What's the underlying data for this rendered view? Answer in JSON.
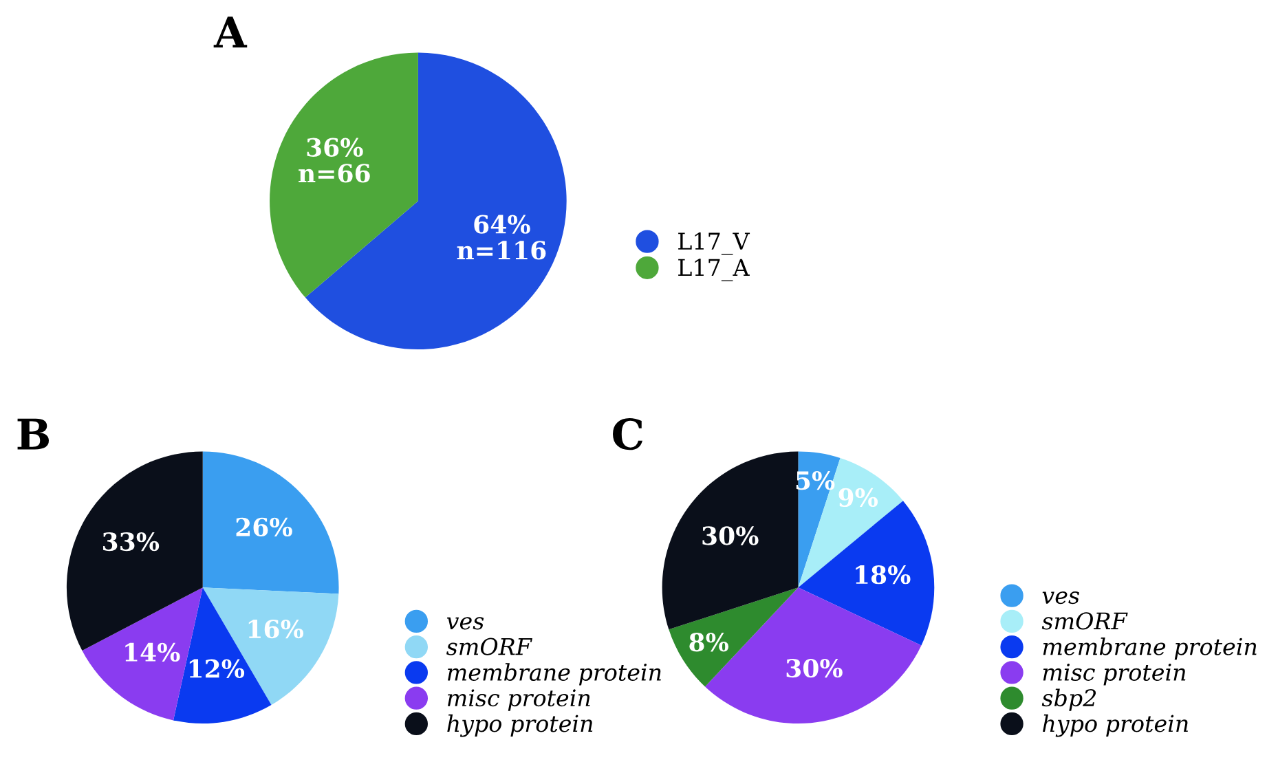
{
  "chart_data": [
    {
      "type": "pie",
      "title": "A",
      "categories": [
        "L17_V",
        "L17_A"
      ],
      "values": [
        116,
        66
      ],
      "colors": [
        "#1f4fe0",
        "#4ea83a"
      ],
      "value_labels": [
        "64%\nn=116",
        "36%\nn=66"
      ],
      "legend": "right"
    },
    {
      "type": "pie",
      "title": "B",
      "categories": [
        "ves",
        "smORF",
        "membrane protein",
        "misc protein",
        "hypo protein"
      ],
      "values": [
        26,
        16,
        12,
        14,
        33
      ],
      "colors": [
        "#3a9ef0",
        "#90d8f5",
        "#0a3af0",
        "#8a3cf0",
        "#0a0f1a"
      ],
      "value_labels": [
        "26%",
        "16%",
        "12%",
        "14%",
        "33%"
      ],
      "legend": "bottom right"
    },
    {
      "type": "pie",
      "title": "C",
      "categories": [
        "ves",
        "smORF",
        "membrane protein",
        "misc protein",
        "sbp2",
        "hypo protein"
      ],
      "values": [
        5,
        9,
        18,
        30,
        8,
        30
      ],
      "colors": [
        "#3a9ef0",
        "#a8eef8",
        "#0a3af0",
        "#8a3cf0",
        "#2e8b2e",
        "#0a0f1a"
      ],
      "value_labels": [
        "5%",
        "9%",
        "18%",
        "30%",
        "8%",
        "30%"
      ],
      "legend": "bottom right"
    }
  ]
}
